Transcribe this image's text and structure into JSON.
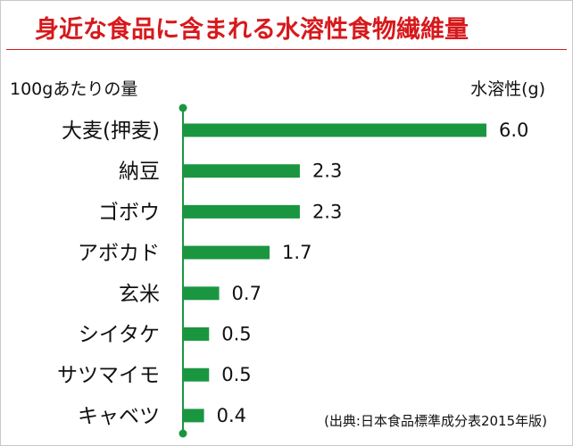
{
  "title": "身近な食品に含まれる水溶性食物繊維量",
  "unit_left": "100gあたりの量",
  "unit_right": "水溶性(g)",
  "source": "(出典:日本食品標準成分表2015年版)",
  "colors": {
    "title": "#d7191c",
    "bar": "#1a9641",
    "axis": "#1a9641",
    "text": "#111111"
  },
  "chart_data": {
    "type": "bar",
    "orientation": "horizontal",
    "title": "身近な食品に含まれる水溶性食物繊維量",
    "categories": [
      "大麦(押麦)",
      "納豆",
      "ゴボウ",
      "アボカド",
      "玄米",
      "シイタケ",
      "サツマイモ",
      "キャベツ"
    ],
    "series": [
      {
        "values": [
          6.0,
          2.3,
          2.3,
          1.7,
          0.7,
          0.5,
          0.5,
          0.4
        ]
      }
    ],
    "value_labels": [
      "6.0",
      "2.3",
      "2.3",
      "1.7",
      "0.7",
      "0.5",
      "0.5",
      "0.4"
    ],
    "xlim": [
      0,
      6.0
    ],
    "grid": false,
    "legend": "none"
  }
}
